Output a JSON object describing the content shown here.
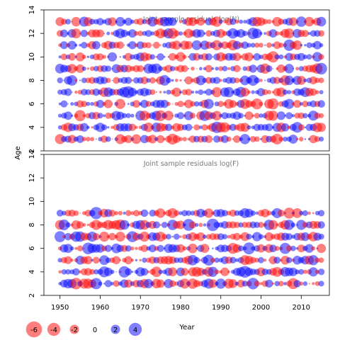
{
  "chart_data": [
    {
      "type": "scatter",
      "title": "Joint sample residuals log(N)",
      "xlabel": "Year",
      "ylabel": "Age",
      "xlim": [
        1946,
        2017
      ],
      "ylim": [
        2,
        14
      ],
      "x_ticks": [
        "1950",
        "1960",
        "1970",
        "1980",
        "1990",
        "2000",
        "2010"
      ],
      "y_ticks": [
        "2",
        "4",
        "6",
        "8",
        "10",
        "12",
        "14"
      ],
      "years": [
        1950,
        2015
      ],
      "ages": [
        3,
        13
      ],
      "grid": false
    },
    {
      "type": "scatter",
      "title": "Joint sample residuals log(F)",
      "xlabel": "Year",
      "ylabel": "Age",
      "xlim": [
        1946,
        2017
      ],
      "ylim": [
        2,
        14
      ],
      "x_ticks": [
        "1950",
        "1960",
        "1970",
        "1980",
        "1990",
        "2000",
        "2010"
      ],
      "y_ticks": [
        "2",
        "4",
        "6",
        "8",
        "10",
        "12",
        "14"
      ],
      "years": [
        1950,
        2015
      ],
      "ages": [
        3,
        9
      ],
      "grid": false
    }
  ],
  "shared": {
    "xlabel": "Year",
    "ylabel": "Age"
  },
  "legend": {
    "placement": "bottom-left",
    "items": [
      {
        "value": -6,
        "label": "-6",
        "color": "#ff0000"
      },
      {
        "value": -4,
        "label": "-4",
        "color": "#ff0000"
      },
      {
        "value": -2,
        "label": "-2",
        "color": "#ff0000"
      },
      {
        "value": 0,
        "label": "0",
        "color": "#000000"
      },
      {
        "value": 2,
        "label": "2",
        "color": "#0000ff"
      },
      {
        "value": 4,
        "label": "4",
        "color": "#0000ff"
      }
    ]
  },
  "colors": {
    "positive": "#0000ff",
    "negative": "#ff0000",
    "bubble_alpha": 0.5
  }
}
